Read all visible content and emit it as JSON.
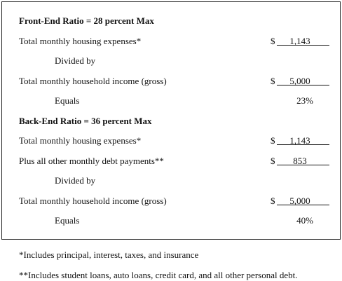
{
  "sections": [
    {
      "title": "Front-End Ratio = 28 percent Max",
      "rows": [
        {
          "label": "Total monthly housing expenses*",
          "currency": "$",
          "amount": "1,143"
        },
        {
          "label": "Divided by"
        },
        {
          "label": "Total monthly household income (gross)",
          "currency": "$",
          "amount": "5,000"
        },
        {
          "label": "Equals",
          "result": "23%"
        }
      ]
    },
    {
      "title": "Back-End Ratio = 36 percent Max",
      "rows": [
        {
          "label": "Total monthly housing expenses*",
          "currency": "$",
          "amount": "1,143"
        },
        {
          "label": "Plus all other monthly debt payments**",
          "currency": "$",
          "amount": "853"
        },
        {
          "label": "Divided by"
        },
        {
          "label": "Total monthly household income (gross)",
          "currency": "$",
          "amount": "5,000"
        },
        {
          "label": "Equals",
          "result": "40%"
        }
      ]
    }
  ],
  "footnotes": [
    "*Includes principal, interest, taxes, and insurance",
    "**Includes student loans, auto loans, credit card, and all other personal debt."
  ]
}
